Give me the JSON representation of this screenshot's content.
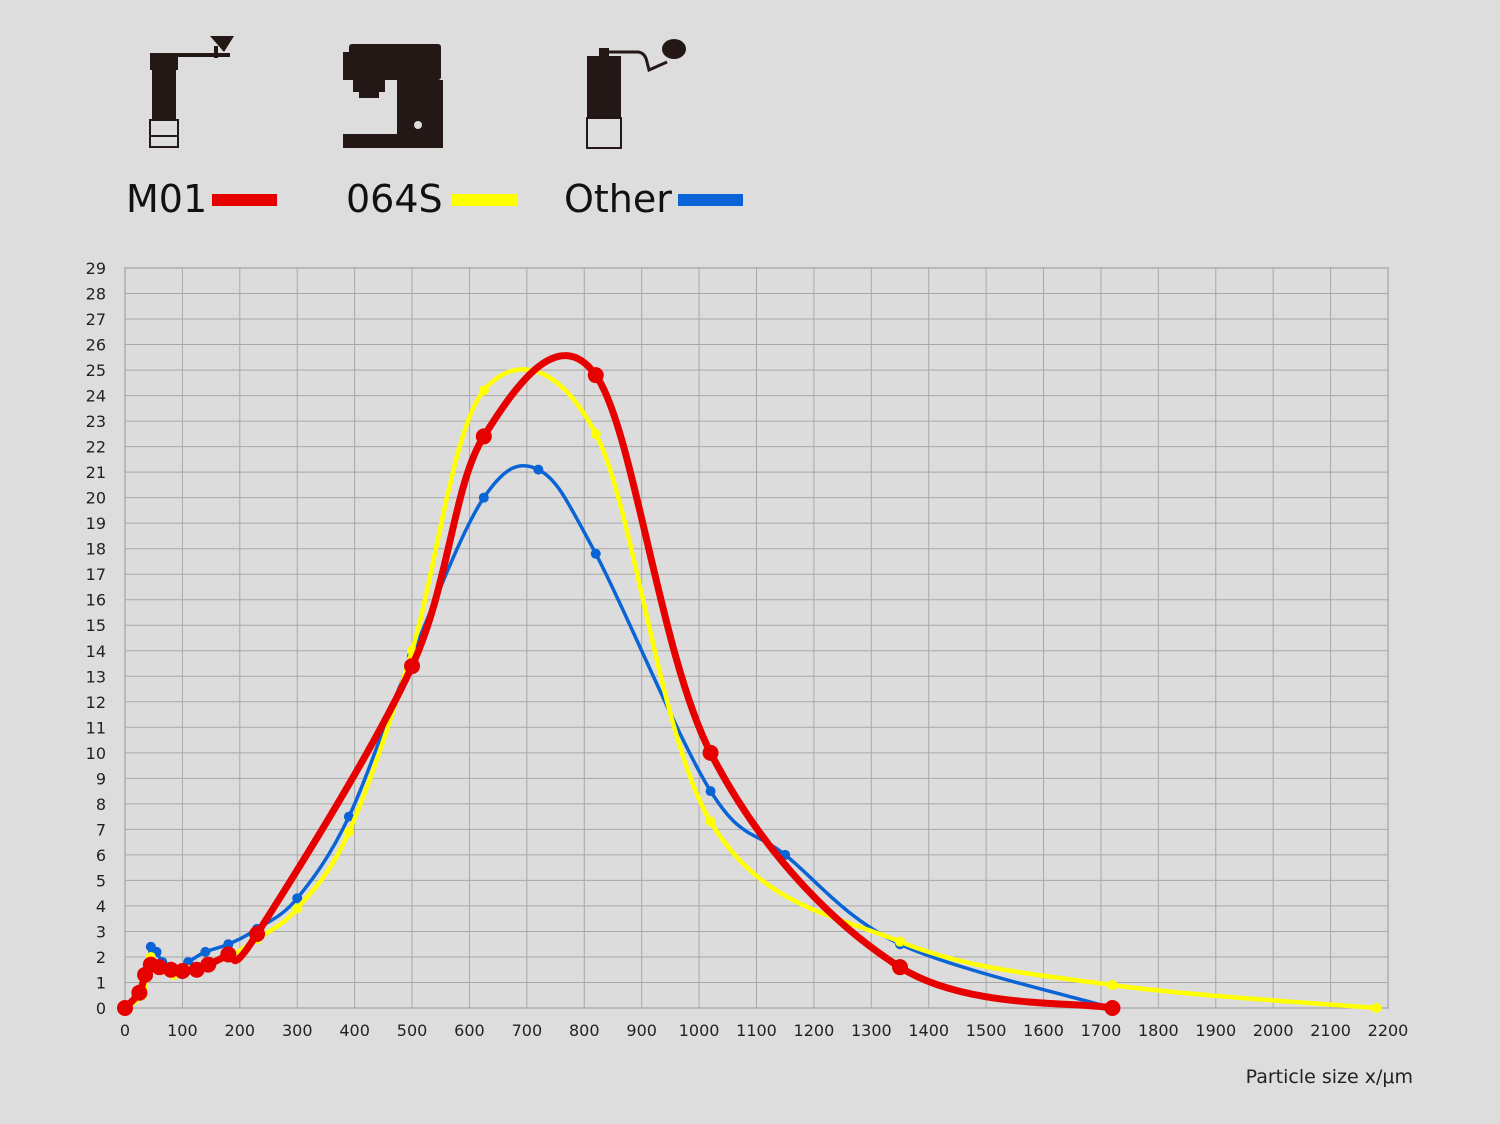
{
  "legend": [
    {
      "label": "M01",
      "color": "#e60000",
      "icon": "hand-grinder-icon"
    },
    {
      "label": "064S",
      "color": "#ffff00",
      "icon": "electric-grinder-icon"
    },
    {
      "label": "Other",
      "color": "#0a64d6",
      "icon": "hand-grinder-alt-icon"
    }
  ],
  "chart_data": {
    "type": "line",
    "title": "",
    "xlabel": "Particle size x/μm",
    "ylabel": "",
    "xlim": [
      0,
      2200
    ],
    "ylim": [
      0,
      29
    ],
    "grid": true,
    "legend_position": "top-left",
    "x_ticks": [
      "0",
      "100",
      "200",
      "300",
      "400",
      "500",
      "600",
      "700",
      "800",
      "900",
      "1000",
      "1100",
      "1200",
      "1300",
      "1400",
      "1500",
      "1600",
      "1700",
      "1800",
      "1900",
      "2000",
      "2100",
      "2200"
    ],
    "y_ticks": [
      "0",
      "1",
      "2",
      "3",
      "4",
      "5",
      "6",
      "7",
      "8",
      "9",
      "10",
      "11",
      "12",
      "13",
      "14",
      "15",
      "16",
      "17",
      "18",
      "19",
      "20",
      "21",
      "22",
      "23",
      "24",
      "25",
      "26",
      "27",
      "28",
      "29"
    ],
    "series": [
      {
        "name": "Other",
        "color": "#0a64d6",
        "points": [
          [
            0,
            0
          ],
          [
            30,
            0.5
          ],
          [
            40,
            1.5
          ],
          [
            45,
            2.4
          ],
          [
            55,
            2.2
          ],
          [
            65,
            1.8
          ],
          [
            85,
            1.5
          ],
          [
            110,
            1.8
          ],
          [
            140,
            2.2
          ],
          [
            180,
            2.5
          ],
          [
            230,
            3.1
          ],
          [
            300,
            4.3
          ],
          [
            390,
            7.5
          ],
          [
            500,
            13.8
          ],
          [
            625,
            20.0
          ],
          [
            720,
            21.1
          ],
          [
            820,
            17.8
          ],
          [
            1020,
            8.5
          ],
          [
            1150,
            6.0
          ],
          [
            1350,
            2.5
          ],
          [
            1720,
            0
          ]
        ]
      },
      {
        "name": "064S",
        "color": "#ffff00",
        "points": [
          [
            0,
            0
          ],
          [
            30,
            0.5
          ],
          [
            40,
            1.5
          ],
          [
            45,
            2.0
          ],
          [
            55,
            1.7
          ],
          [
            65,
            1.5
          ],
          [
            85,
            1.3
          ],
          [
            110,
            1.5
          ],
          [
            140,
            1.7
          ],
          [
            180,
            2.0
          ],
          [
            230,
            2.7
          ],
          [
            300,
            3.9
          ],
          [
            390,
            6.9
          ],
          [
            500,
            14.0
          ],
          [
            625,
            24.2
          ],
          [
            820,
            22.5
          ],
          [
            1020,
            7.3
          ],
          [
            1350,
            2.6
          ],
          [
            1720,
            0.9
          ],
          [
            2180,
            0
          ]
        ]
      },
      {
        "name": "M01",
        "color": "#e60000",
        "points": [
          [
            0,
            0
          ],
          [
            25,
            0.6
          ],
          [
            35,
            1.3
          ],
          [
            45,
            1.7
          ],
          [
            60,
            1.6
          ],
          [
            80,
            1.5
          ],
          [
            100,
            1.45
          ],
          [
            125,
            1.5
          ],
          [
            145,
            1.7
          ],
          [
            180,
            2.1
          ],
          [
            230,
            2.9
          ],
          [
            500,
            13.4
          ],
          [
            625,
            22.4
          ],
          [
            820,
            24.8
          ],
          [
            1020,
            10.0
          ],
          [
            1350,
            1.6
          ],
          [
            1720,
            0
          ]
        ]
      }
    ]
  }
}
